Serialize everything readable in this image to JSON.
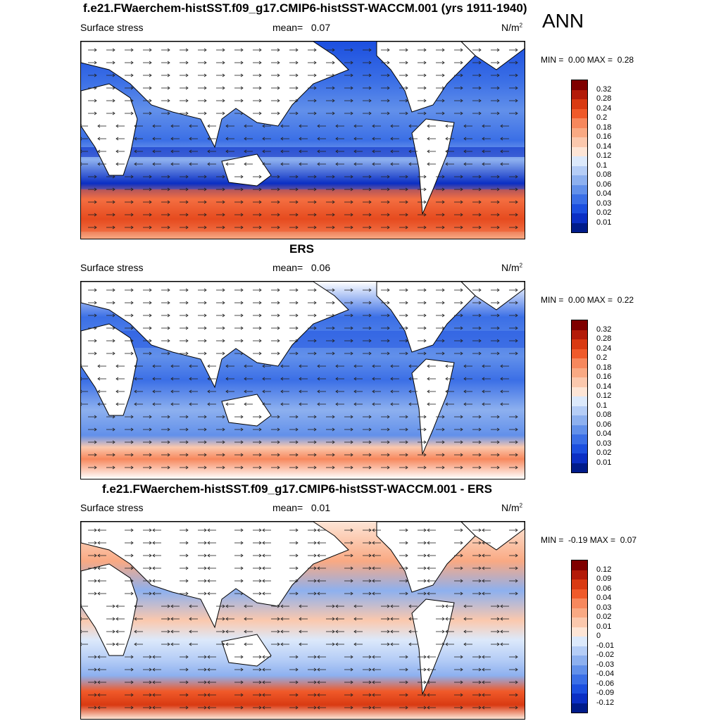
{
  "panels": [
    {
      "title": "f.e21.FWaerchem-histSST.f09_g17.CMIP6-histSST-WACCM.001 (yrs 1911-1940)",
      "variable": "Surface stress",
      "mean_label": "mean=",
      "mean_value": "0.07",
      "units": "N/m",
      "units_sup": "2",
      "min_label": "MIN =",
      "min_value": "0.00",
      "max_label": "MAX =",
      "max_value": "0.28",
      "colorbar_labels": [
        "0.32",
        "0.28",
        "0.24",
        "0.2",
        "0.18",
        "0.16",
        "0.14",
        "0.12",
        "0.1",
        "0.08",
        "0.06",
        "0.04",
        "0.03",
        "0.02",
        "0.01"
      ],
      "colorbar_colors": [
        "#7f0000",
        "#b31b09",
        "#d93a12",
        "#f05a2a",
        "#f7885d",
        "#f9a983",
        "#fbc8ad",
        "#fde5d6",
        "#dce9fb",
        "#b5cdf6",
        "#8db0ef",
        "#6290ea",
        "#3b6fe6",
        "#1c4fdf",
        "#0b2fc4",
        "#001b8a"
      ]
    },
    {
      "title": "ERS",
      "variable": "Surface stress",
      "mean_label": "mean=",
      "mean_value": "0.06",
      "units": "N/m",
      "units_sup": "2",
      "min_label": "MIN =",
      "min_value": "0.00",
      "max_label": "MAX =",
      "max_value": "0.22",
      "colorbar_labels": [
        "0.32",
        "0.28",
        "0.24",
        "0.2",
        "0.18",
        "0.16",
        "0.14",
        "0.12",
        "0.1",
        "0.08",
        "0.06",
        "0.04",
        "0.03",
        "0.02",
        "0.01"
      ],
      "colorbar_colors": [
        "#7f0000",
        "#b31b09",
        "#d93a12",
        "#f05a2a",
        "#f7885d",
        "#f9a983",
        "#fbc8ad",
        "#fde5d6",
        "#dce9fb",
        "#b5cdf6",
        "#8db0ef",
        "#6290ea",
        "#3b6fe6",
        "#1c4fdf",
        "#0b2fc4",
        "#001b8a"
      ]
    },
    {
      "title": "f.e21.FWaerchem-histSST.f09_g17.CMIP6-histSST-WACCM.001 - ERS",
      "variable": "Surface stress",
      "mean_label": "mean=",
      "mean_value": "0.01",
      "units": "N/m",
      "units_sup": "2",
      "min_label": "MIN =",
      "min_value": "-0.19",
      "max_label": "MAX =",
      "max_value": "0.07",
      "colorbar_labels": [
        "0.12",
        "0.09",
        "0.06",
        "0.04",
        "0.03",
        "0.02",
        "0.01",
        "0",
        "-0.01",
        "-0.02",
        "-0.03",
        "-0.04",
        "-0.06",
        "-0.09",
        "-0.12"
      ],
      "colorbar_colors": [
        "#7f0000",
        "#b31b09",
        "#d93a12",
        "#f05a2a",
        "#f7885d",
        "#f9a983",
        "#fbc8ad",
        "#fde5d6",
        "#dce9fb",
        "#b5cdf6",
        "#8db0ef",
        "#6290ea",
        "#3b6fe6",
        "#1c4fdf",
        "#0b2fc4",
        "#001b8a"
      ]
    }
  ],
  "season": "ANN"
}
